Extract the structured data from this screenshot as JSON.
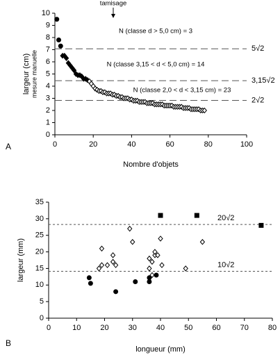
{
  "chart_data": [
    {
      "type": "scatter",
      "panel": "A",
      "annotation_top": "tamisage",
      "ylabel": "largeur (cm)",
      "ylabel_sub": "mesure manuelle",
      "xlabel": "Nombre d'objets",
      "xlim": [
        0,
        100
      ],
      "xticks": [
        0,
        20,
        40,
        60,
        80,
        100
      ],
      "ylim": [
        0,
        10
      ],
      "yticks": [
        0,
        1,
        2,
        3,
        4,
        5,
        6,
        7,
        8,
        9,
        10
      ],
      "annotations": [
        "N (classe d > 5,0 cm) = 3",
        "N (classe 3,15 < d < 5,0 cm) = 14",
        "N (classe 2,0 < d < 3,15 cm) = 23"
      ],
      "hlines": [
        {
          "value": 7.07,
          "label": "5√2"
        },
        {
          "value": 4.45,
          "label": "3,15√2"
        },
        {
          "value": 2.83,
          "label": "2√2"
        }
      ],
      "series": [
        {
          "marker": "circle",
          "filled": true,
          "color": "#000000",
          "x": [
            1,
            2,
            3
          ],
          "values": [
            9.5,
            7.8,
            7.3
          ]
        },
        {
          "marker": "diamond",
          "filled": true,
          "color": "#000000",
          "x": [
            4,
            5,
            6,
            7,
            8,
            9,
            10,
            11,
            12,
            13,
            14,
            15,
            16,
            17
          ],
          "values": [
            6.5,
            6.5,
            6.3,
            5.9,
            5.7,
            5.5,
            5.3,
            5.0,
            4.9,
            4.9,
            4.8,
            4.6,
            4.6,
            4.5
          ]
        },
        {
          "marker": "diamond",
          "filled": false,
          "color": "#000000",
          "x": [
            18,
            19,
            20,
            21,
            22,
            23,
            24,
            25,
            26,
            27,
            28,
            29,
            30,
            31,
            32,
            33,
            34,
            35,
            36,
            37,
            38,
            39,
            40
          ],
          "values": [
            4.4,
            4.2,
            4.0,
            3.8,
            3.7,
            3.6,
            3.6,
            3.5,
            3.5,
            3.4,
            3.4,
            3.4,
            3.3,
            3.3,
            3.2,
            3.2,
            3.1,
            3.1,
            3.0,
            3.0,
            3.0,
            2.9,
            2.9
          ]
        },
        {
          "marker": "diamond",
          "filled": false,
          "color": "#000000",
          "x": [
            41,
            42,
            43,
            44,
            45,
            46,
            47,
            48,
            49,
            50,
            51,
            52,
            53,
            54,
            55,
            56,
            57,
            58,
            59,
            60,
            61,
            62,
            63,
            64,
            65,
            66,
            67,
            68,
            69,
            70,
            71,
            72,
            73,
            74,
            75,
            76,
            77,
            78
          ],
          "values": [
            2.8,
            2.8,
            2.8,
            2.7,
            2.7,
            2.7,
            2.7,
            2.6,
            2.6,
            2.6,
            2.6,
            2.5,
            2.5,
            2.5,
            2.5,
            2.5,
            2.4,
            2.4,
            2.4,
            2.4,
            2.4,
            2.3,
            2.3,
            2.3,
            2.3,
            2.3,
            2.2,
            2.2,
            2.2,
            2.2,
            2.1,
            2.1,
            2.1,
            2.1,
            2.1,
            2.0,
            2.0,
            2.0
          ]
        }
      ]
    },
    {
      "type": "scatter",
      "panel": "B",
      "ylabel": "largeur (mm)",
      "xlabel": "longueur (mm)",
      "xlim": [
        0,
        80
      ],
      "xticks": [
        0,
        10,
        20,
        30,
        40,
        50,
        60,
        70,
        80
      ],
      "ylim": [
        0,
        35
      ],
      "yticks": [
        0,
        5,
        10,
        15,
        20,
        25,
        30,
        35
      ],
      "hlines": [
        {
          "value": 28.28,
          "label": "20√2"
        },
        {
          "value": 14.14,
          "label": "10√2"
        }
      ],
      "series": [
        {
          "marker": "square",
          "filled": true,
          "color": "#000000",
          "x": [
            40,
            53,
            76
          ],
          "values": [
            31,
            31,
            28
          ]
        },
        {
          "marker": "circle",
          "filled": true,
          "color": "#000000",
          "x": [
            14.5,
            15,
            24,
            31,
            36,
            36,
            38.5
          ],
          "values": [
            12.2,
            10.5,
            8,
            11,
            11,
            12.2,
            13
          ]
        },
        {
          "marker": "diamond",
          "filled": false,
          "color": "#000000",
          "x": [
            18,
            19,
            19,
            21,
            23,
            23,
            24,
            29,
            30,
            36,
            36,
            37,
            37,
            38,
            38,
            39,
            40,
            40.5,
            49,
            55
          ],
          "values": [
            15,
            16,
            21,
            16,
            17,
            19,
            16,
            27,
            23,
            15,
            18,
            13,
            17,
            19,
            20,
            19,
            24,
            16,
            15,
            23
          ]
        }
      ]
    }
  ]
}
